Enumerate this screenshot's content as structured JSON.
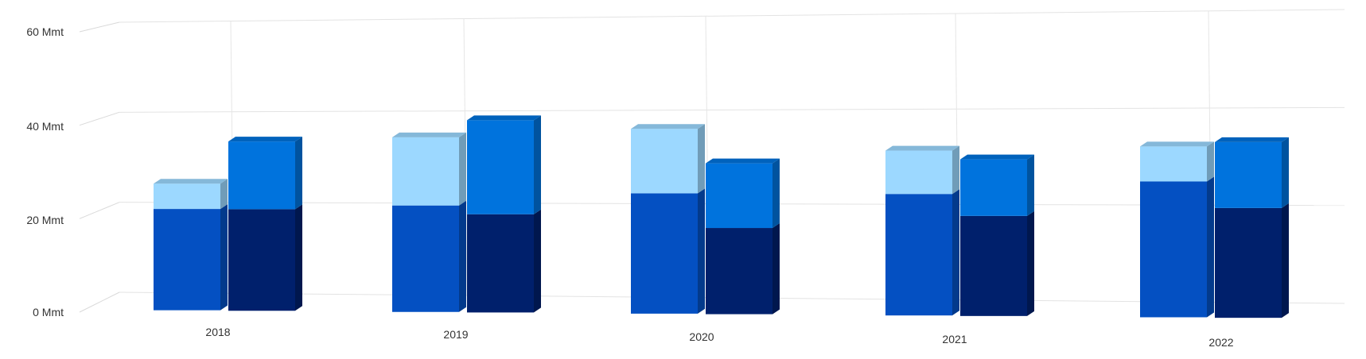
{
  "chart_data": {
    "type": "bar",
    "stacked": true,
    "three_d": true,
    "categories": [
      "2018",
      "2019",
      "2020",
      "2021",
      "2022"
    ],
    "y_ticks": [
      "0 Mmt",
      "20 Mmt",
      "40 Mmt",
      "60 Mmt"
    ],
    "ylim": [
      0,
      60
    ],
    "grid": true,
    "legend": "none",
    "stacks": [
      {
        "series": [
          {
            "values": [
              24,
              25,
              28,
              28,
              31
            ],
            "color": "#0450c2"
          },
          {
            "values": [
              6,
              16,
              15,
              10,
              8
            ],
            "color": "#9cd8ff"
          }
        ]
      },
      {
        "series": [
          {
            "values": [
              24,
              23,
              20,
              23,
              25
            ],
            "color": "#00206c"
          },
          {
            "values": [
              16,
              22,
              15,
              13,
              15
            ],
            "color": "#0073dd"
          }
        ]
      }
    ]
  }
}
